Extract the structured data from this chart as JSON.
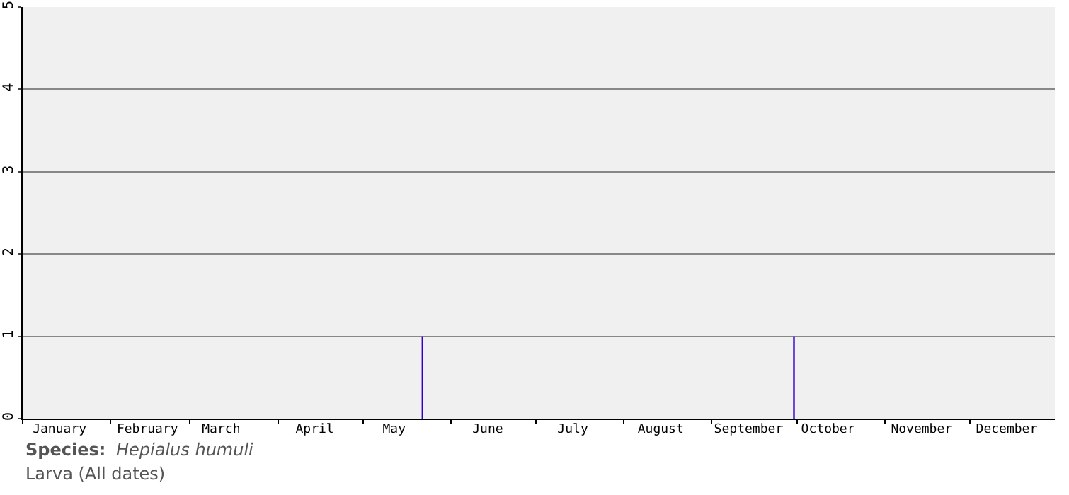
{
  "chart_data": {
    "type": "bar",
    "x": [
      "--05-22",
      "--09-30"
    ],
    "values": [
      1,
      1
    ],
    "color": "#3300cc",
    "xlim": [
      "--01-01",
      "--12-31"
    ],
    "xticks": [
      {
        "value": "--01-01",
        "label": null
      },
      {
        "value": "--02-01",
        "label": null
      },
      {
        "value": "--03-01",
        "label": null
      },
      {
        "value": "--04-01",
        "label": null
      },
      {
        "value": "--05-01",
        "label": null
      },
      {
        "value": "--06-01",
        "label": null
      },
      {
        "value": "--07-01",
        "label": null
      },
      {
        "value": "--08-01",
        "label": null
      },
      {
        "value": "--09-01",
        "label": null
      },
      {
        "value": "--10-01",
        "label": null
      },
      {
        "value": "--11-01",
        "label": null
      },
      {
        "value": "--12-01",
        "label": null
      },
      {
        "value": "--01-14",
        "label": "January"
      },
      {
        "value": "--02-14",
        "label": "February"
      },
      {
        "value": "--03-12",
        "label": "March"
      },
      {
        "value": "--04-14",
        "label": "April"
      },
      {
        "value": "--05-12",
        "label": "May"
      },
      {
        "value": "--06-14",
        "label": "June"
      },
      {
        "value": "--07-14",
        "label": "July"
      },
      {
        "value": "--08-14",
        "label": "August"
      },
      {
        "value": "--09-14",
        "label": "September"
      },
      {
        "value": "--10-12",
        "label": "October"
      },
      {
        "value": "--11-14",
        "label": "November"
      },
      {
        "value": "--12-14",
        "label": "December"
      }
    ],
    "ylim": [
      0,
      5
    ],
    "yticks": [
      0,
      1,
      2,
      3,
      4,
      5
    ],
    "grid": "y",
    "annotations": [
      "Species:",
      "Hepialus humuli",
      "Larva (All dates)"
    ]
  }
}
